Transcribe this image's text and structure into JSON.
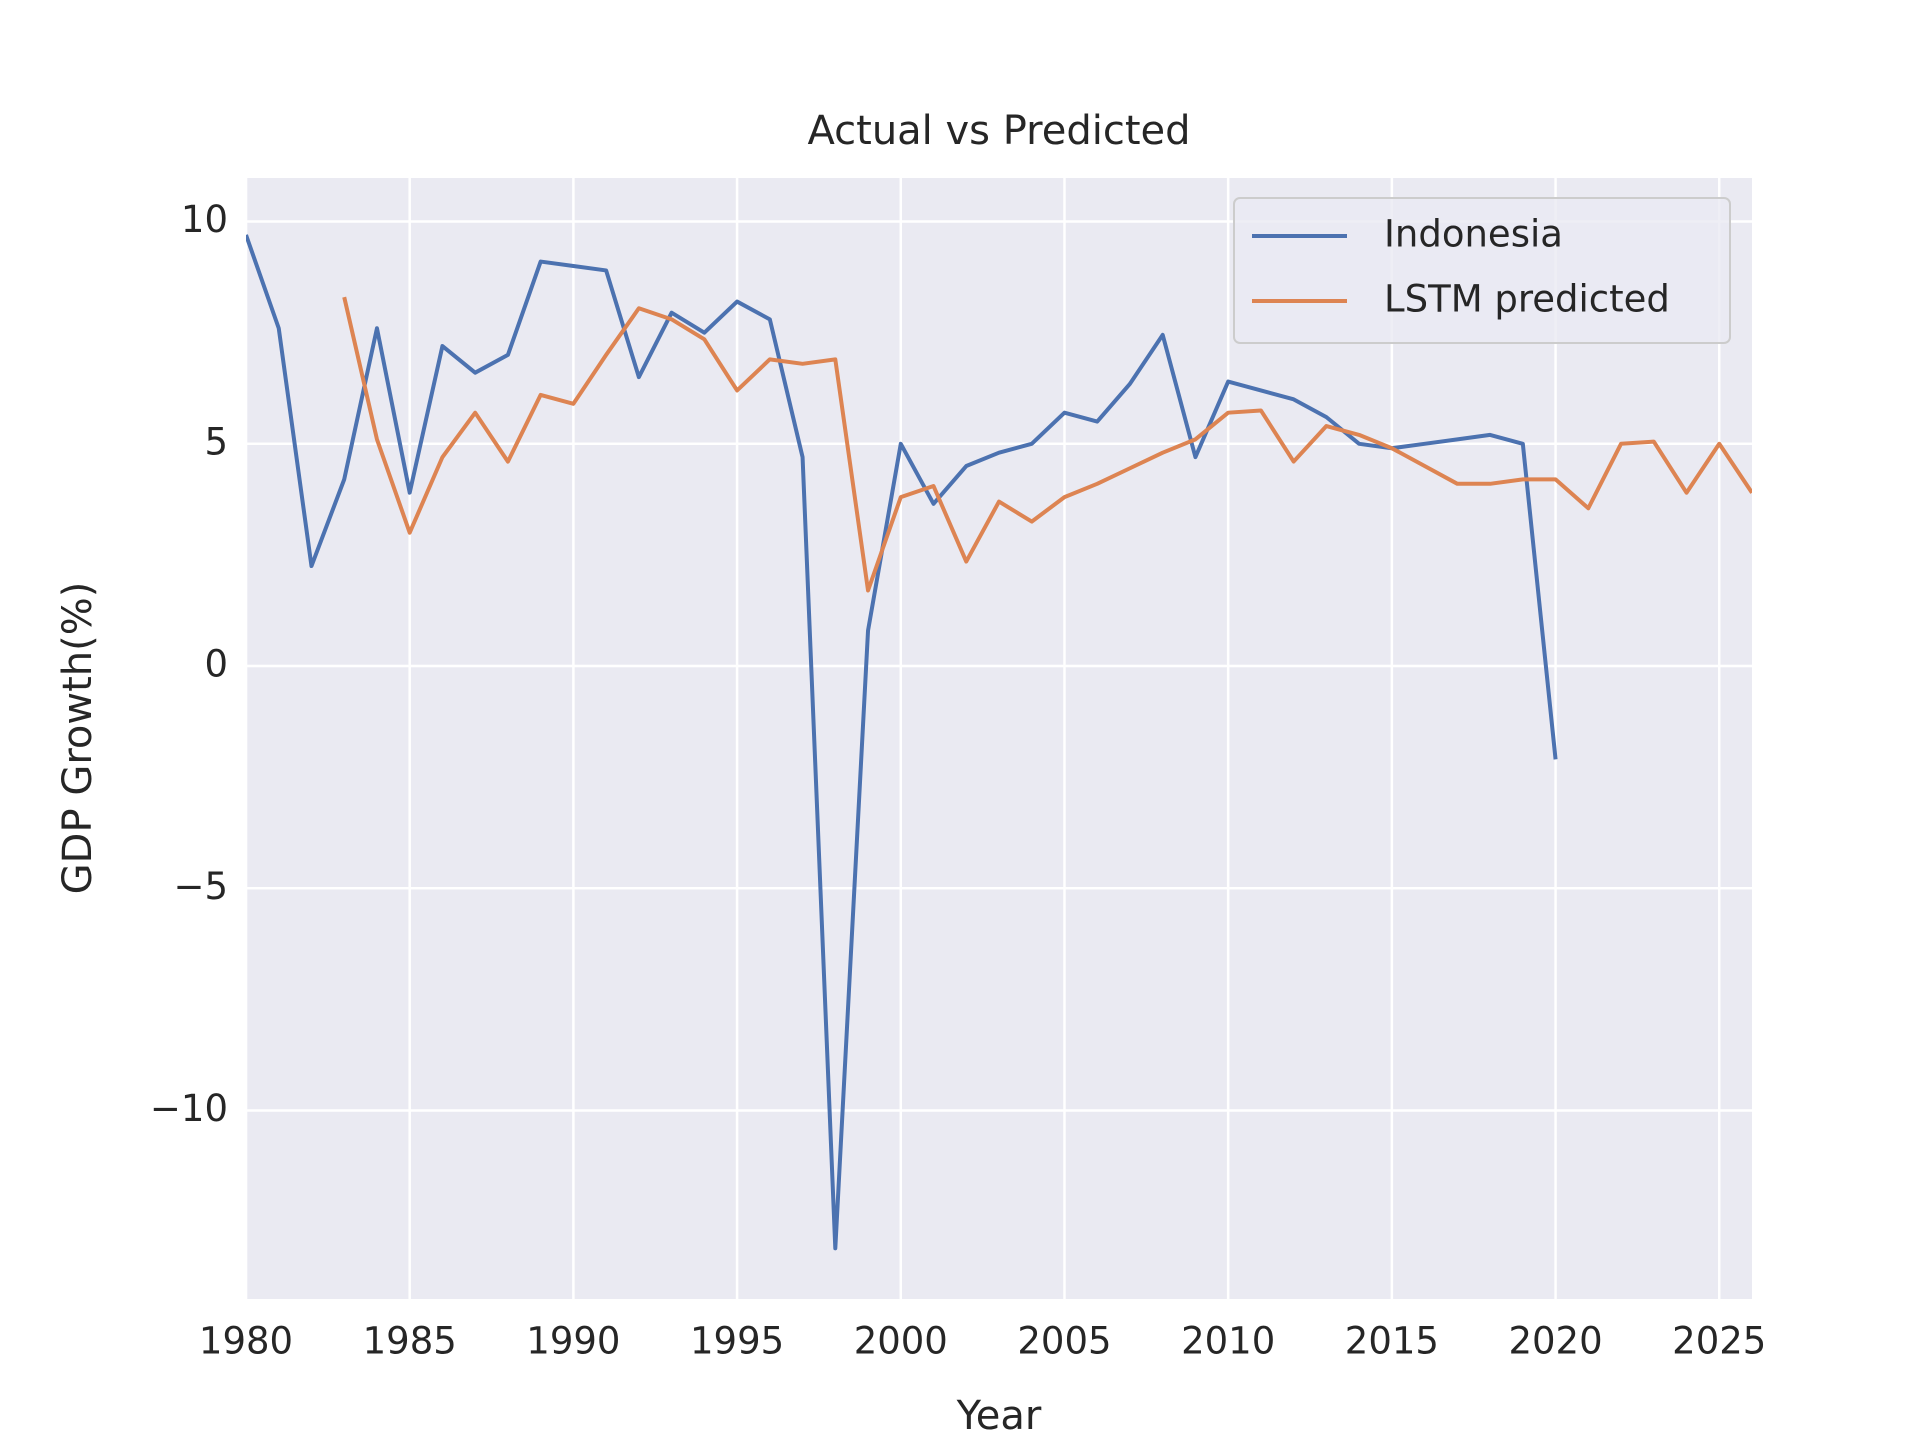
{
  "chart_data": {
    "type": "line",
    "title": "Actual vs Predicted",
    "x_label": "Year",
    "y_label": "GDP Growth(%)",
    "x": [
      1980,
      1981,
      1982,
      1983,
      1984,
      1985,
      1986,
      1987,
      1988,
      1989,
      1990,
      1991,
      1992,
      1993,
      1994,
      1995,
      1996,
      1997,
      1998,
      1999,
      2000,
      2001,
      2002,
      2003,
      2004,
      2005,
      2006,
      2007,
      2008,
      2009,
      2010,
      2011,
      2012,
      2013,
      2014,
      2015,
      2016,
      2017,
      2018,
      2019,
      2020,
      2021,
      2022,
      2023,
      2024,
      2025,
      2026
    ],
    "series": [
      {
        "name": "Indonesia",
        "color": "#4c72b0",
        "values": [
          9.7,
          7.6,
          2.25,
          4.2,
          7.6,
          3.9,
          7.2,
          6.6,
          7.0,
          9.1,
          9.0,
          8.9,
          6.5,
          7.95,
          7.5,
          8.2,
          7.8,
          4.7,
          -13.1,
          0.8,
          5.0,
          3.65,
          4.5,
          4.8,
          5.0,
          5.7,
          5.5,
          6.35,
          7.45,
          4.7,
          6.4,
          6.2,
          6.0,
          5.6,
          5.0,
          4.9,
          5.0,
          5.1,
          5.2,
          5.0,
          -2.1,
          null,
          null,
          null,
          null,
          null,
          null
        ]
      },
      {
        "name": "LSTM predicted",
        "color": "#dd8452",
        "values": [
          null,
          null,
          null,
          8.3,
          5.1,
          3.0,
          4.7,
          5.7,
          4.6,
          6.1,
          5.9,
          7.0,
          8.05,
          7.8,
          7.35,
          6.2,
          6.9,
          6.8,
          6.9,
          1.7,
          3.8,
          4.05,
          2.35,
          3.7,
          3.25,
          3.8,
          4.1,
          4.45,
          4.8,
          5.1,
          5.7,
          5.75,
          4.6,
          5.4,
          5.2,
          4.9,
          4.5,
          4.1,
          4.1,
          4.2,
          4.2,
          3.55,
          5.0,
          5.05,
          3.9,
          5.0,
          3.9
        ]
      }
    ],
    "xlim": [
      1980,
      2026
    ],
    "xticks": [
      1980,
      1985,
      1990,
      1995,
      2000,
      2005,
      2010,
      2015,
      2020,
      2025
    ],
    "ylim": [
      -14.24,
      10.98
    ],
    "yticks": [
      {
        "value": -10,
        "label": "−10"
      },
      {
        "value": -5,
        "label": "−5"
      },
      0,
      5,
      10
    ],
    "grid": true,
    "legend": "upper right"
  }
}
